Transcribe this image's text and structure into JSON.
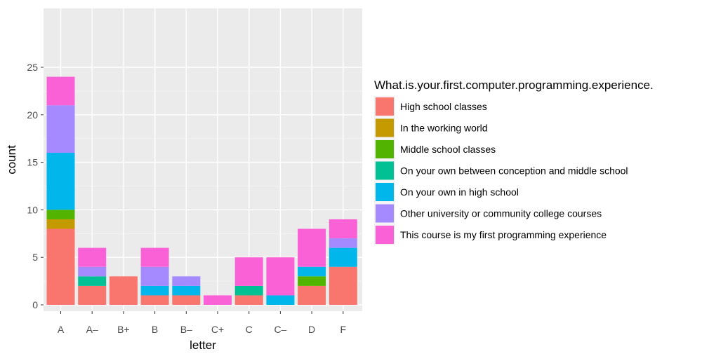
{
  "chart_data": {
    "type": "bar",
    "stacked": true,
    "categories": [
      "A",
      "A–",
      "B+",
      "B",
      "B–",
      "C+",
      "C",
      "C–",
      "D",
      "F"
    ],
    "xlabel": "letter",
    "ylabel": "count",
    "ylim": [
      0,
      25
    ],
    "yticks": [
      0,
      5,
      10,
      15,
      20,
      25
    ],
    "grid": true,
    "legend_position": "right",
    "legend_title": "What.is.your.first.computer.programming.experience.",
    "series": [
      {
        "name": "High school classes",
        "color": "#F8766D",
        "values": [
          8,
          2,
          3,
          1,
          1,
          0,
          1,
          0,
          2,
          4
        ]
      },
      {
        "name": "In the working world",
        "color": "#C49A00",
        "values": [
          1,
          0,
          0,
          0,
          0,
          0,
          0,
          0,
          0,
          0
        ]
      },
      {
        "name": "Middle school classes",
        "color": "#53B400",
        "values": [
          1,
          0,
          0,
          0,
          0,
          0,
          0,
          0,
          1,
          0
        ]
      },
      {
        "name": "On your own between conception and middle school",
        "color": "#00C094",
        "values": [
          0,
          1,
          0,
          0,
          0,
          0,
          1,
          0,
          0,
          0
        ]
      },
      {
        "name": "On your own in high school",
        "color": "#00B6EB",
        "values": [
          6,
          0,
          0,
          1,
          1,
          0,
          0,
          1,
          1,
          2
        ]
      },
      {
        "name": "Other university or community college courses",
        "color": "#A58AFF",
        "values": [
          5,
          1,
          0,
          2,
          1,
          0,
          0,
          0,
          0,
          1
        ]
      },
      {
        "name": "This course is my first programming experience",
        "color": "#FB61D7",
        "values": [
          3,
          2,
          0,
          2,
          0,
          1,
          3,
          4,
          4,
          2
        ]
      }
    ]
  }
}
